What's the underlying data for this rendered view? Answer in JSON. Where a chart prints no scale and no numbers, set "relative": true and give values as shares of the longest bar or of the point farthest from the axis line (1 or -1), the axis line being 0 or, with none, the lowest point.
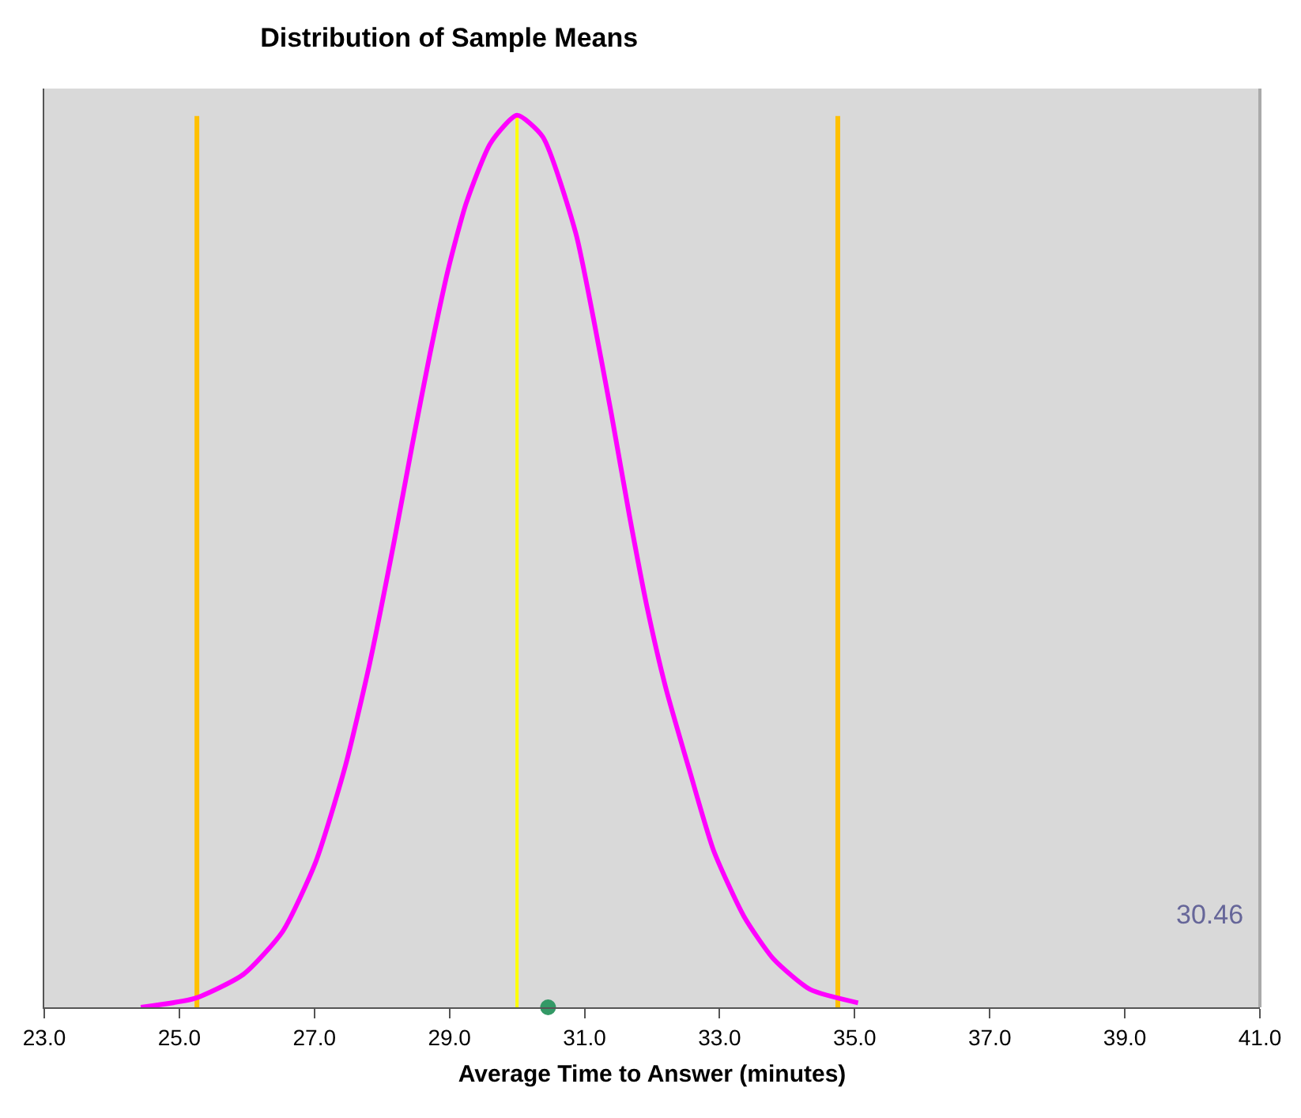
{
  "chart_data": {
    "type": "line",
    "title": "Distribution of Sample Means",
    "xlabel": "Average Time to Answer (minutes)",
    "relative": true,
    "grid": false,
    "xlim": [
      23,
      41
    ],
    "xticks": [
      {
        "value": 23,
        "label": "23.0"
      },
      {
        "value": 25,
        "label": "25.0"
      },
      {
        "value": 27,
        "label": "27.0"
      },
      {
        "value": 29,
        "label": "29.0"
      },
      {
        "value": 31,
        "label": "31.0"
      },
      {
        "value": 33,
        "label": "33.0"
      },
      {
        "value": 35,
        "label": "35.0"
      },
      {
        "value": 37,
        "label": "37.0"
      },
      {
        "value": 39,
        "label": "39.0"
      },
      {
        "value": 41,
        "label": "41.0"
      }
    ],
    "series": [
      {
        "color": "#ff00ff",
        "marker": "none",
        "x": [
          24.43,
          25.23,
          25.95,
          26.53,
          27.02,
          27.46,
          27.82,
          28.18,
          28.45,
          28.71,
          28.98,
          29.25,
          29.61,
          30.0,
          30.38,
          30.87,
          31.13,
          31.4,
          31.67,
          31.93,
          32.2,
          32.56,
          32.91,
          33.36,
          33.8,
          34.34,
          35.05
        ],
        "values": [
          0.0,
          0.01,
          0.037,
          0.085,
          0.163,
          0.271,
          0.386,
          0.522,
          0.631,
          0.732,
          0.827,
          0.902,
          0.969,
          1.0,
          0.976,
          0.868,
          0.773,
          0.664,
          0.549,
          0.447,
          0.359,
          0.264,
          0.176,
          0.102,
          0.054,
          0.02,
          0.005
        ]
      },
      {
        "type": "scatter",
        "color": "#339966",
        "marker": "circle",
        "x": [
          30.46
        ],
        "values": [
          0
        ]
      }
    ],
    "ref_lines": [
      {
        "axis": "x",
        "value": 25.26,
        "color": "#ffc000"
      },
      {
        "axis": "x",
        "value": 30,
        "color": "#ffff00"
      },
      {
        "axis": "x",
        "value": 34.75,
        "color": "#ffc000"
      }
    ],
    "annotations": [
      "30.46"
    ]
  }
}
